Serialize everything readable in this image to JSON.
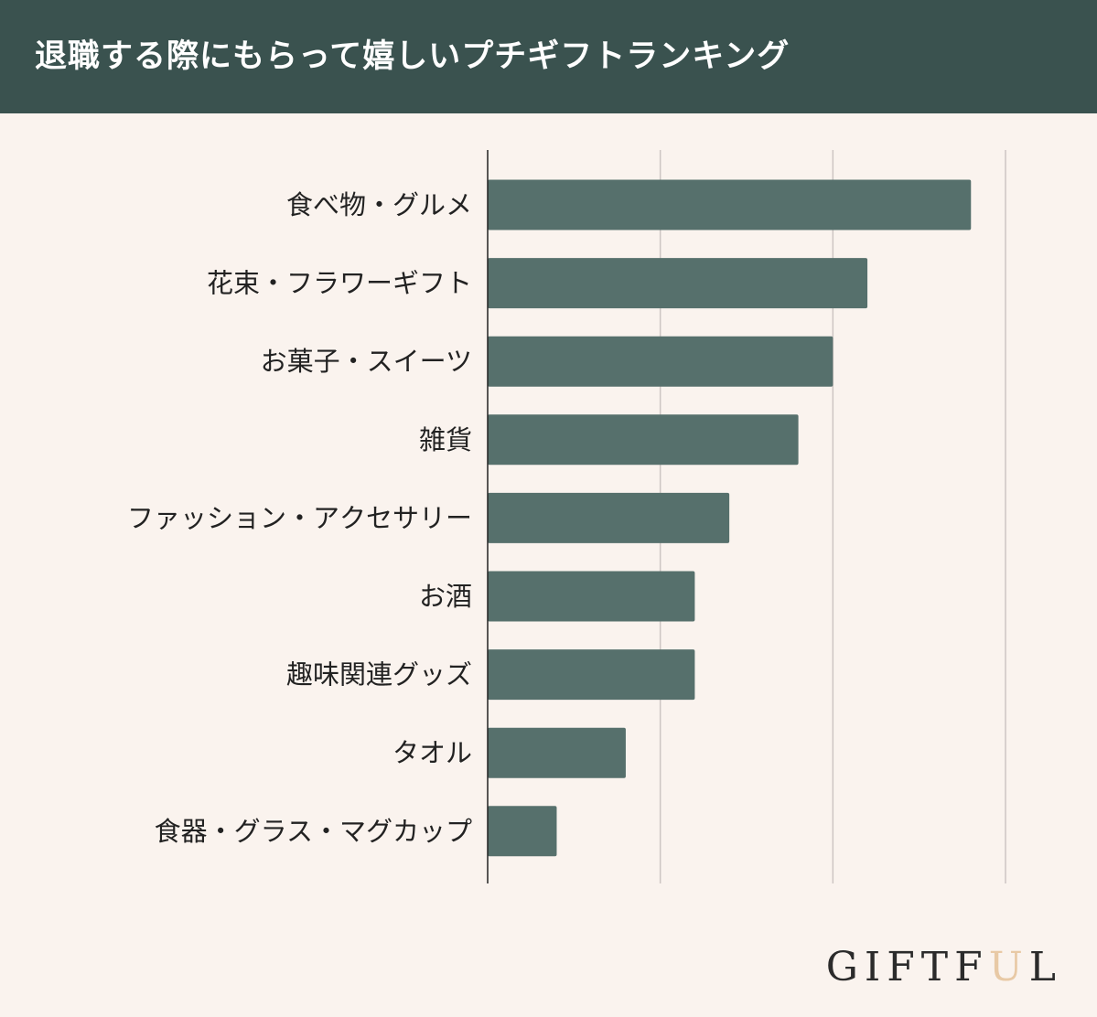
{
  "header": {
    "title": "退職する際にもらって嬉しいプチギフトランキング"
  },
  "chart_data": {
    "type": "bar",
    "orientation": "horizontal",
    "title": "退職する際にもらって嬉しいプチギフトランキング",
    "categories": [
      "食べ物・グルメ",
      "花束・フラワーギフト",
      "お菓子・スイーツ",
      "雑貨",
      "ファッション・アクセサリー",
      "お酒",
      "趣味関連グッズ",
      "タオル",
      "食器・グラス・マグカップ"
    ],
    "values": [
      28,
      22,
      20,
      18,
      14,
      12,
      12,
      8,
      4
    ],
    "xlim": [
      0,
      30
    ],
    "x_gridlines": [
      0,
      10,
      20,
      30
    ],
    "tick_labels_shown": false,
    "grid": true,
    "colors": {
      "bar": "#56706c",
      "grid": "#cdc5c3",
      "axis": "#222222",
      "background": "#faf3ee",
      "header": "#3a524f"
    }
  },
  "brand": {
    "logo_text": "GIFTFUL",
    "logo_accent_color": "#e8c9a5"
  }
}
